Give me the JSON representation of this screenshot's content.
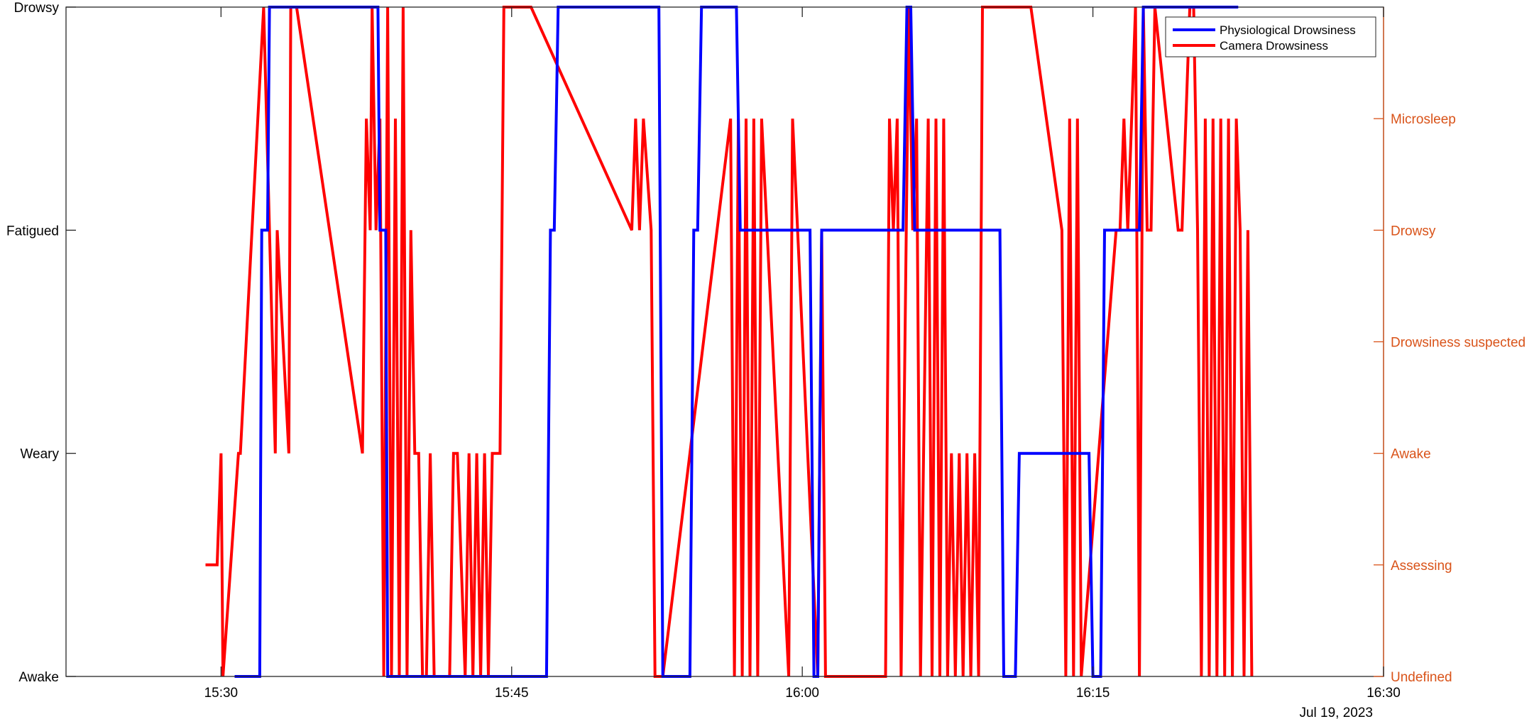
{
  "chart_data": {
    "type": "line",
    "title": "",
    "xlabel": "",
    "date_label": "Jul 19, 2023",
    "xlim": [
      "15:22",
      "16:30"
    ],
    "x_ticks": [
      "15:30",
      "15:45",
      "16:00",
      "16:15",
      "16:30"
    ],
    "y_left": {
      "ticks": [
        "Awake",
        "Weary",
        "Fatigued",
        "Drowsy"
      ],
      "ylim": [
        0,
        3
      ]
    },
    "y_right": {
      "ticks": [
        "Undefined",
        "Assessing",
        "Awake",
        "Drowsiness suspected",
        "Drowsy",
        "Microsleep"
      ],
      "ylim": [
        0,
        6
      ],
      "color": "#D95319"
    },
    "grid": false,
    "legend_position": "top-right",
    "series": [
      {
        "name": "Physiological Drowsiness",
        "color": "#0000FF",
        "axis": "left",
        "x": [
          "15:30.7",
          "15:32.0",
          "15:32.1",
          "15:32.4",
          "15:32.5",
          "15:38.1",
          "15:38.2",
          "15:38.5",
          "15:38.6",
          "15:46.8",
          "15:47.0",
          "15:47.2",
          "15:47.4",
          "15:52.6",
          "15:52.8",
          "15:54.2",
          "15:54.4",
          "15:54.6",
          "15:54.8",
          "15:56.6",
          "15:56.8",
          "16:00.4",
          "16:00.6",
          "16:00.8",
          "16:01.0",
          "16:05.2",
          "16:05.4",
          "16:05.6",
          "16:05.8",
          "16:10.2",
          "16:10.4",
          "16:11.0",
          "16:11.2",
          "16:14.8",
          "16:15.0",
          "16:15.4",
          "16:15.6",
          "16:17.4",
          "16:17.6",
          "16:22.5"
        ],
        "y": [
          0,
          0,
          2,
          2,
          3,
          3,
          2,
          2,
          0,
          0,
          2,
          2,
          3,
          3,
          0,
          0,
          2,
          2,
          3,
          3,
          2,
          2,
          0,
          0,
          2,
          2,
          3,
          3,
          2,
          2,
          0,
          0,
          1,
          1,
          0,
          0,
          2,
          2,
          3,
          3
        ]
      },
      {
        "name": "Camera Drowsiness",
        "color": "#FF0000",
        "axis": "right",
        "x": [
          "15:29.2",
          "15:29.8",
          "15:30.0",
          "15:30.1",
          "15:30.9",
          "15:31.0",
          "15:31.6",
          "15:32.2",
          "15:32.8",
          "15:32.9",
          "15:33.5",
          "15:33.6",
          "15:33.9",
          "15:37.3",
          "15:37.5",
          "15:37.7",
          "15:37.8",
          "15:38.0",
          "15:38.2",
          "15:38.4",
          "15:38.6",
          "15:38.8",
          "15:39.0",
          "15:39.2",
          "15:39.4",
          "15:39.6",
          "15:39.8",
          "15:40.0",
          "15:40.2",
          "15:40.4",
          "15:40.6",
          "15:40.8",
          "15:41.0",
          "15:41.8",
          "15:42.0",
          "15:42.2",
          "15:42.6",
          "15:42.8",
          "15:43.0",
          "15:43.2",
          "15:43.4",
          "15:43.6",
          "15:43.8",
          "15:44.0",
          "15:44.4",
          "15:44.6",
          "15:45.8",
          "15:46.0",
          "15:51.2",
          "15:51.4",
          "15:51.6",
          "15:51.8",
          "15:52.2",
          "15:52.4",
          "15:52.6",
          "15:52.8",
          "15:56.3",
          "15:56.5",
          "15:56.7",
          "15:56.9",
          "15:57.1",
          "15:57.3",
          "15:57.5",
          "15:57.7",
          "15:57.9",
          "15:59.3",
          "15:59.5",
          "16:00.8",
          "16:01.0",
          "16:01.2",
          "16:01.4",
          "16:04.3",
          "16:04.5",
          "16:04.7",
          "16:04.9",
          "16:05.1",
          "16:05.5",
          "16:05.7",
          "16:05.9",
          "16:06.1",
          "16:06.5",
          "16:06.7",
          "16:06.9",
          "16:07.1",
          "16:07.3",
          "16:07.5",
          "16:07.7",
          "16:07.9",
          "16:08.1",
          "16:08.3",
          "16:08.5",
          "16:08.7",
          "16:08.9",
          "16:09.1",
          "16:09.3",
          "16:11.8",
          "16:13.4",
          "16:13.6",
          "16:13.8",
          "16:14.0",
          "16:14.2",
          "16:14.4",
          "16:16.2",
          "16:16.4",
          "16:16.6",
          "16:16.8",
          "16:17.2",
          "16:17.4",
          "16:17.6",
          "16:17.8",
          "16:18.0",
          "16:18.2",
          "16:19.4",
          "16:19.6",
          "16:20.0",
          "16:20.2",
          "16:20.4",
          "16:20.6",
          "16:20.8",
          "16:21.0",
          "16:21.2",
          "16:21.4",
          "16:21.6",
          "16:21.8",
          "16:22.0",
          "16:22.2",
          "16:22.4",
          "16:22.6",
          "16:22.8",
          "16:23.0",
          "16:23.2"
        ],
        "y": [
          1,
          1,
          2,
          0,
          2,
          2,
          4,
          6,
          2,
          4,
          2,
          6,
          6,
          2,
          5,
          4,
          6,
          4,
          5,
          0,
          6,
          0,
          5,
          0,
          6,
          0,
          4,
          2,
          2,
          0,
          0,
          2,
          0,
          0,
          2,
          2,
          0,
          2,
          0,
          2,
          0,
          2,
          0,
          2,
          2,
          6,
          6,
          6,
          4,
          5,
          4,
          5,
          4,
          0,
          0,
          0,
          5,
          0,
          5,
          0,
          5,
          0,
          5,
          0,
          5,
          0,
          5,
          0,
          4,
          0,
          0,
          0,
          5,
          4,
          5,
          0,
          6,
          4,
          5,
          0,
          5,
          0,
          5,
          0,
          5,
          0,
          2,
          0,
          2,
          0,
          2,
          0,
          2,
          0,
          6,
          6,
          4,
          0,
          5,
          0,
          5,
          0,
          4,
          4,
          5,
          4,
          6,
          0,
          6,
          4,
          4,
          6,
          4,
          4,
          6,
          6,
          4,
          0,
          5,
          0,
          5,
          0,
          5,
          0,
          5,
          0,
          5,
          4,
          0,
          4,
          0
        ]
      }
    ]
  }
}
